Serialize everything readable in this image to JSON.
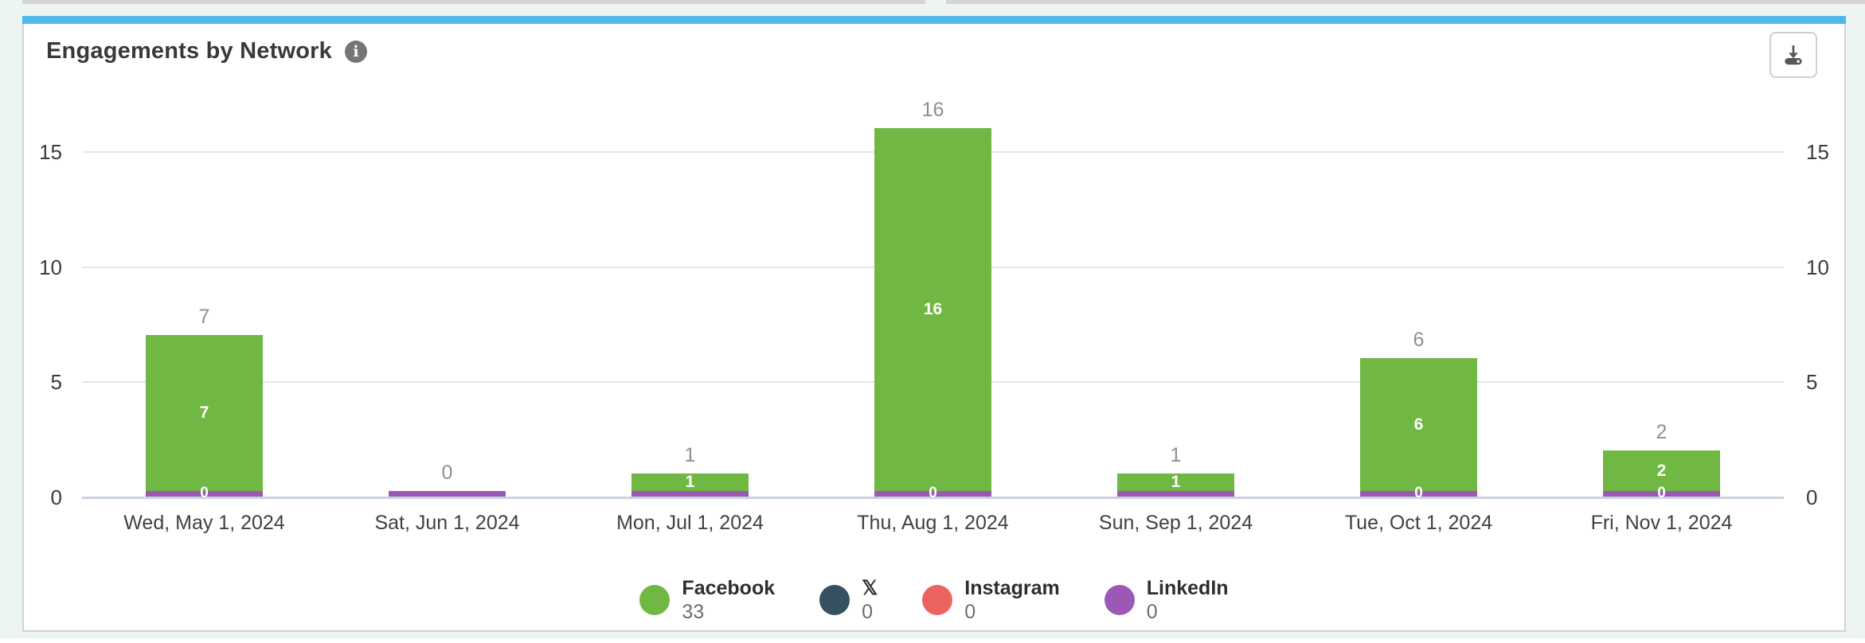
{
  "card": {
    "title": "Engagements by Network",
    "info_glyph": "i"
  },
  "chart_data": {
    "type": "bar",
    "stacked": true,
    "title": "Engagements by Network",
    "categories": [
      "Wed, May 1, 2024",
      "Sat, Jun 1, 2024",
      "Mon, Jul 1, 2024",
      "Thu, Aug 1, 2024",
      "Sun, Sep 1, 2024",
      "Tue, Oct 1, 2024",
      "Fri, Nov 1, 2024"
    ],
    "series": [
      {
        "name": "Facebook",
        "color": "#70b843",
        "values": [
          7,
          0,
          1,
          16,
          1,
          6,
          2
        ]
      },
      {
        "name": "X",
        "color": "#35505f",
        "values": [
          0,
          0,
          0,
          0,
          0,
          0,
          0
        ]
      },
      {
        "name": "Instagram",
        "color": "#ec6460",
        "values": [
          0,
          0,
          0,
          0,
          0,
          0,
          0
        ]
      },
      {
        "name": "LinkedIn",
        "color": "#9c58b4",
        "values": [
          0,
          0,
          0,
          0,
          0,
          0,
          0
        ]
      }
    ],
    "totals": [
      7,
      0,
      1,
      16,
      1,
      6,
      2
    ],
    "bar_total_labels": [
      "7",
      "0",
      "1",
      "16",
      "1",
      "6",
      "2"
    ],
    "facebook_inner_labels": [
      "7",
      "",
      "1",
      "16",
      "1",
      "6",
      "2"
    ],
    "linkedin_zero_labels": [
      "0",
      "",
      "",
      "0",
      "",
      "0",
      "0"
    ],
    "y_ticks": [
      15,
      10,
      5,
      0
    ],
    "ylim": [
      0,
      16.6
    ],
    "grid": true,
    "legend_position": "bottom",
    "legend": [
      {
        "label": "Facebook",
        "value": "33",
        "color": "#70b843"
      },
      {
        "label": "𝕏",
        "value": "0",
        "color": "#35505f"
      },
      {
        "label": "Instagram",
        "value": "0",
        "color": "#ec6460"
      },
      {
        "label": "LinkedIn",
        "value": "0",
        "color": "#9c58b4"
      }
    ]
  }
}
